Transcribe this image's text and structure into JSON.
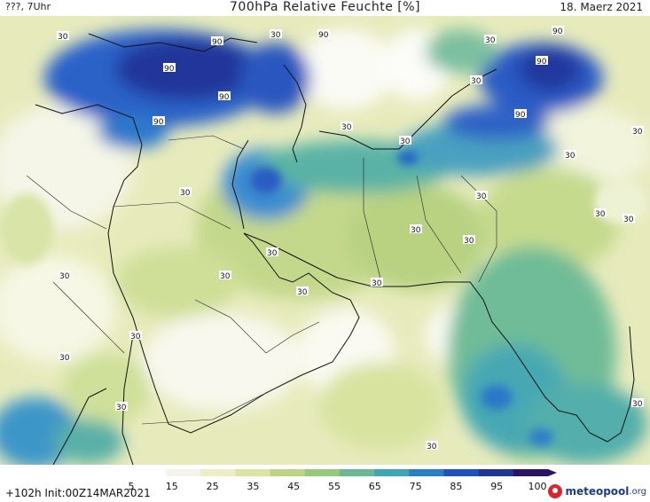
{
  "header": {
    "left": "???, 7Uhr",
    "title": "700hPa Relative Feuchte [%]",
    "date": "18. Maerz 2021"
  },
  "footer": {
    "run_info": "+102h  Init:00Z14MAR2021",
    "brand_name": "meteopool",
    "brand_tld": ".org"
  },
  "colorbar": {
    "ticks": [
      "5",
      "15",
      "25",
      "35",
      "45",
      "55",
      "65",
      "75",
      "85",
      "95",
      "100"
    ],
    "colors": [
      "#ffffff",
      "#f4f4ec",
      "#eeeec4",
      "#dce4a2",
      "#bcd484",
      "#98c87a",
      "#6cb894",
      "#3ca6b6",
      "#2580c8",
      "#1f52c0",
      "#203496",
      "#2a1266"
    ]
  },
  "map": {
    "contour_labels": [
      "30",
      "90"
    ]
  }
}
